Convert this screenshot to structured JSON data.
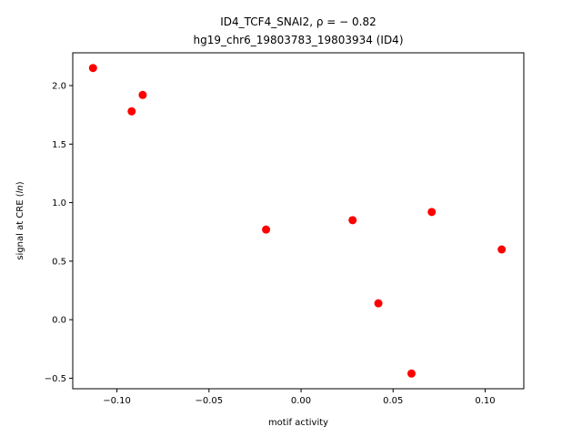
{
  "chart_data": {
    "type": "scatter",
    "title_line1": "ID4_TCF4_SNAI2, ρ = − 0.82",
    "title_line2": "hg19_chr6_19803783_19803934 (ID4)",
    "xlabel": "motif activity",
    "ylabel": "signal at CRE (ln)",
    "xlim": [
      -0.124,
      0.121
    ],
    "ylim": [
      -0.59,
      2.28
    ],
    "xticks": [
      -0.1,
      -0.05,
      0.0,
      0.05,
      0.1
    ],
    "xtick_labels": [
      "−0.10",
      "−0.05",
      "0.00",
      "0.05",
      "0.10"
    ],
    "yticks": [
      -0.5,
      0.0,
      0.5,
      1.0,
      1.5,
      2.0
    ],
    "ytick_labels": [
      "−0.5",
      "0.0",
      "0.5",
      "1.0",
      "1.5",
      "2.0"
    ],
    "grid": false,
    "marker_color": "#ff0000",
    "points": [
      {
        "x": -0.113,
        "y": 2.15
      },
      {
        "x": -0.092,
        "y": 1.78
      },
      {
        "x": -0.086,
        "y": 1.92
      },
      {
        "x": -0.019,
        "y": 0.77
      },
      {
        "x": 0.028,
        "y": 0.85
      },
      {
        "x": 0.042,
        "y": 0.14
      },
      {
        "x": 0.06,
        "y": -0.46
      },
      {
        "x": 0.071,
        "y": 0.92
      },
      {
        "x": 0.109,
        "y": 0.6
      }
    ]
  }
}
